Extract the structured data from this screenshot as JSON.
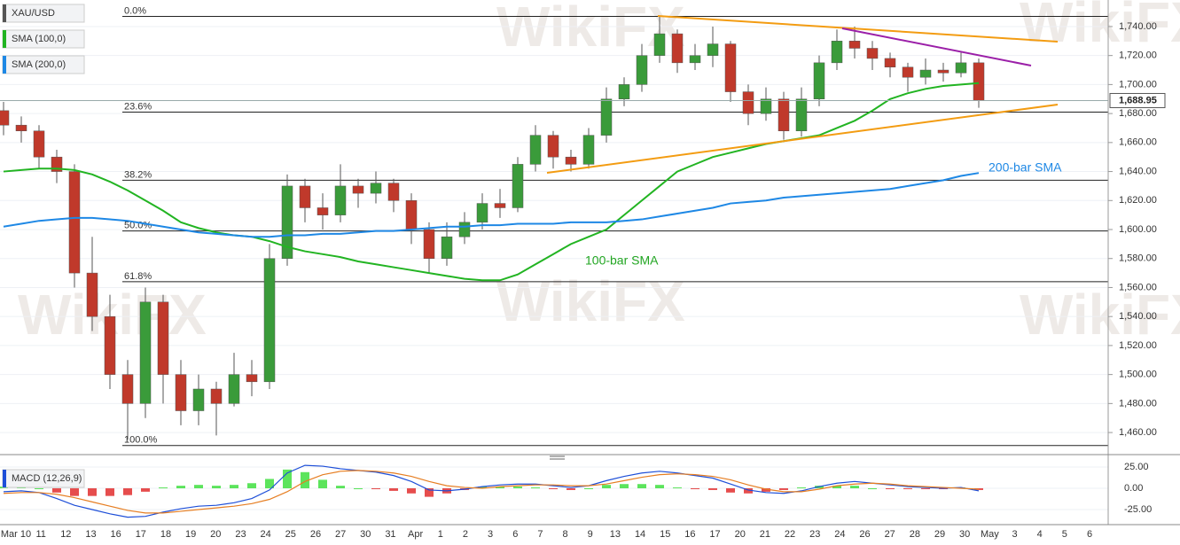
{
  "chart_data": [
    {
      "type": "candlestick",
      "date_labels": [
        "Mar 10",
        "11",
        "12",
        "13",
        "16",
        "17",
        "18",
        "19",
        "20",
        "23",
        "24",
        "25",
        "26",
        "27",
        "30",
        "31",
        "Apr",
        "1",
        "2",
        "3",
        "6",
        "7",
        "8",
        "9",
        "13",
        "14",
        "15",
        "16",
        "17",
        "20",
        "21",
        "22",
        "23",
        "24",
        "26",
        "27",
        "28",
        "29",
        "30",
        "May",
        "3",
        "4",
        "5",
        "6"
      ],
      "ylim": [
        1446.6,
        1758.3
      ],
      "yticks": [
        {
          "value": 1460,
          "label": "1,460.00"
        },
        {
          "value": 1480,
          "label": "1,480.00"
        },
        {
          "value": 1500,
          "label": "1,500.00"
        },
        {
          "value": 1520,
          "label": "1,520.00"
        },
        {
          "value": 1540,
          "label": "1,540.00"
        },
        {
          "value": 1560,
          "label": "1,560.00"
        },
        {
          "value": 1580,
          "label": "1,580.00"
        },
        {
          "value": 1600,
          "label": "1,600.00"
        },
        {
          "value": 1620,
          "label": "1,620.00"
        },
        {
          "value": 1640,
          "label": "1,640.00"
        },
        {
          "value": 1660,
          "label": "1,660.00"
        },
        {
          "value": 1680,
          "label": "1,680.00"
        },
        {
          "value": 1700,
          "label": "1,700.00"
        },
        {
          "value": 1720,
          "label": "1,720.00"
        },
        {
          "value": 1740,
          "label": "1,740.00"
        }
      ],
      "grid": true,
      "series": [
        {
          "name": "XAU/USD",
          "up_color": "#3a9b3a",
          "down_color": "#c0392b",
          "color": "#555555",
          "open": [
            1682,
            1672,
            1668,
            1650,
            1640,
            1570,
            1540,
            1500,
            1480,
            1550,
            1500,
            1475,
            1490,
            1480,
            1500,
            1495,
            1580,
            1630,
            1615,
            1610,
            1630,
            1625,
            1632,
            1620,
            1600,
            1580,
            1595,
            1605,
            1618,
            1615,
            1645,
            1665,
            1650,
            1645,
            1665,
            1690,
            1700,
            1720,
            1735,
            1715,
            1720,
            1728,
            1695,
            1680,
            1690,
            1668,
            1690,
            1715,
            1730,
            1725,
            1718,
            1712,
            1705,
            1710,
            1708,
            1715
          ],
          "high": [
            1688,
            1678,
            1672,
            1655,
            1645,
            1595,
            1555,
            1510,
            1560,
            1555,
            1510,
            1500,
            1495,
            1515,
            1510,
            1590,
            1638,
            1635,
            1625,
            1645,
            1635,
            1640,
            1635,
            1625,
            1605,
            1605,
            1612,
            1625,
            1628,
            1650,
            1672,
            1668,
            1655,
            1670,
            1698,
            1705,
            1728,
            1747,
            1738,
            1728,
            1740,
            1730,
            1700,
            1698,
            1695,
            1698,
            1720,
            1738,
            1740,
            1730,
            1722,
            1715,
            1718,
            1715,
            1722,
            1718
          ],
          "low": [
            1665,
            1660,
            1642,
            1632,
            1560,
            1530,
            1490,
            1455,
            1470,
            1480,
            1465,
            1465,
            1458,
            1478,
            1485,
            1490,
            1575,
            1605,
            1600,
            1605,
            1615,
            1618,
            1612,
            1590,
            1570,
            1575,
            1590,
            1600,
            1608,
            1612,
            1640,
            1642,
            1640,
            1642,
            1660,
            1685,
            1695,
            1715,
            1708,
            1710,
            1712,
            1688,
            1672,
            1675,
            1662,
            1664,
            1685,
            1710,
            1718,
            1710,
            1705,
            1695,
            1700,
            1702,
            1705,
            1684
          ],
          "close": [
            1672,
            1668,
            1650,
            1640,
            1570,
            1540,
            1500,
            1480,
            1550,
            1500,
            1475,
            1490,
            1480,
            1500,
            1495,
            1580,
            1630,
            1615,
            1610,
            1630,
            1625,
            1632,
            1620,
            1600,
            1580,
            1595,
            1605,
            1618,
            1615,
            1645,
            1665,
            1650,
            1645,
            1665,
            1690,
            1700,
            1720,
            1735,
            1715,
            1720,
            1728,
            1695,
            1680,
            1690,
            1668,
            1690,
            1715,
            1730,
            1725,
            1718,
            1712,
            1705,
            1710,
            1708,
            1715,
            1689
          ]
        },
        {
          "name": "SMA (100,0)",
          "color": "#22b422",
          "values": [
            1640,
            1641,
            1642,
            1642,
            1641,
            1638,
            1633,
            1627,
            1620,
            1613,
            1605,
            1601,
            1598,
            1596,
            1595,
            1592,
            1588,
            1585,
            1583,
            1581,
            1578,
            1576,
            1574,
            1572,
            1570,
            1568,
            1566,
            1565,
            1565,
            1569,
            1576,
            1583,
            1590,
            1595,
            1600,
            1610,
            1620,
            1630,
            1640,
            1645,
            1650,
            1653,
            1656,
            1659,
            1661,
            1663,
            1665,
            1670,
            1675,
            1682,
            1690,
            1694,
            1697,
            1699,
            1700,
            1701
          ]
        },
        {
          "name": "SMA (200,0)",
          "color": "#1e88e5",
          "values": [
            1602,
            1604,
            1606,
            1607,
            1608,
            1608,
            1607,
            1606,
            1604,
            1602,
            1600,
            1598,
            1597,
            1596,
            1595,
            1595,
            1596,
            1596,
            1597,
            1597,
            1598,
            1599,
            1599,
            1600,
            1601,
            1602,
            1602,
            1603,
            1603,
            1604,
            1604,
            1604,
            1605,
            1605,
            1605,
            1606,
            1607,
            1609,
            1611,
            1613,
            1615,
            1618,
            1619,
            1620,
            1622,
            1623,
            1624,
            1625,
            1626,
            1627,
            1628,
            1630,
            1632,
            1634,
            1637,
            1639
          ]
        }
      ],
      "fib_levels": [
        {
          "label": "0.0%",
          "value": 1747
        },
        {
          "label": "23.6%",
          "value": 1681
        },
        {
          "label": "38.2%",
          "value": 1634
        },
        {
          "label": "50.0%",
          "value": 1599
        },
        {
          "label": "61.8%",
          "value": 1564
        },
        {
          "label": "100.0%",
          "value": 1451
        }
      ],
      "last_price": {
        "value": 1688.95,
        "label": "1,688.95"
      },
      "annotations": [
        {
          "text": "200-bar SMA",
          "color": "#1e88e5"
        },
        {
          "text": "100-bar SMA",
          "color": "#22a622"
        }
      ],
      "watermark": "WikiFX"
    },
    {
      "type": "macd",
      "title": "MACD (12,26,9)",
      "ylim": [
        -42.7,
        34.4
      ],
      "yticks": [
        {
          "value": 25,
          "label": "25.00"
        },
        {
          "value": 0,
          "label": "0.00"
        },
        {
          "value": -25,
          "label": "-25.00"
        }
      ],
      "series": [
        {
          "name": "MACD",
          "color": "#1e4fd8",
          "values": [
            -4,
            -3,
            -5,
            -12,
            -20,
            -25,
            -30,
            -34,
            -33,
            -28,
            -24,
            -21,
            -20,
            -17,
            -12,
            -2,
            18,
            27,
            26,
            23,
            21,
            19,
            15,
            8,
            -2,
            -3,
            -1,
            2,
            4,
            5,
            5,
            3,
            1,
            3,
            9,
            14,
            18,
            20,
            18,
            15,
            12,
            5,
            -2,
            -5,
            -6,
            -3,
            2,
            6,
            8,
            6,
            4,
            2,
            1,
            0,
            1,
            -3
          ]
        },
        {
          "name": "Signal",
          "color": "#e67e22",
          "values": [
            -6,
            -5,
            -5,
            -7,
            -11,
            -16,
            -21,
            -26,
            -29,
            -29,
            -27,
            -25,
            -23,
            -21,
            -18,
            -13,
            -4,
            8,
            16,
            20,
            21,
            20,
            18,
            14,
            8,
            3,
            1,
            0,
            2,
            3,
            4,
            4,
            3,
            3,
            5,
            9,
            13,
            16,
            17,
            16,
            14,
            10,
            4,
            -1,
            -4,
            -4,
            -1,
            3,
            5,
            6,
            5,
            3,
            2,
            1,
            0,
            -1
          ]
        },
        {
          "name": "Histogram",
          "up_color": "#33dd33",
          "down_color": "#e02020",
          "values": [
            2,
            2,
            0,
            -5,
            -9,
            -9,
            -9,
            -8,
            -4,
            1,
            3,
            4,
            3,
            4,
            6,
            11,
            22,
            19,
            10,
            3,
            0,
            -1,
            -3,
            -6,
            -10,
            -6,
            -2,
            2,
            2,
            2,
            1,
            -1,
            -2,
            0,
            4,
            5,
            5,
            4,
            1,
            -1,
            -2,
            -5,
            -6,
            -4,
            -2,
            1,
            3,
            3,
            3,
            0,
            -1,
            -1,
            -1,
            -1,
            1,
            -2
          ]
        }
      ]
    }
  ]
}
